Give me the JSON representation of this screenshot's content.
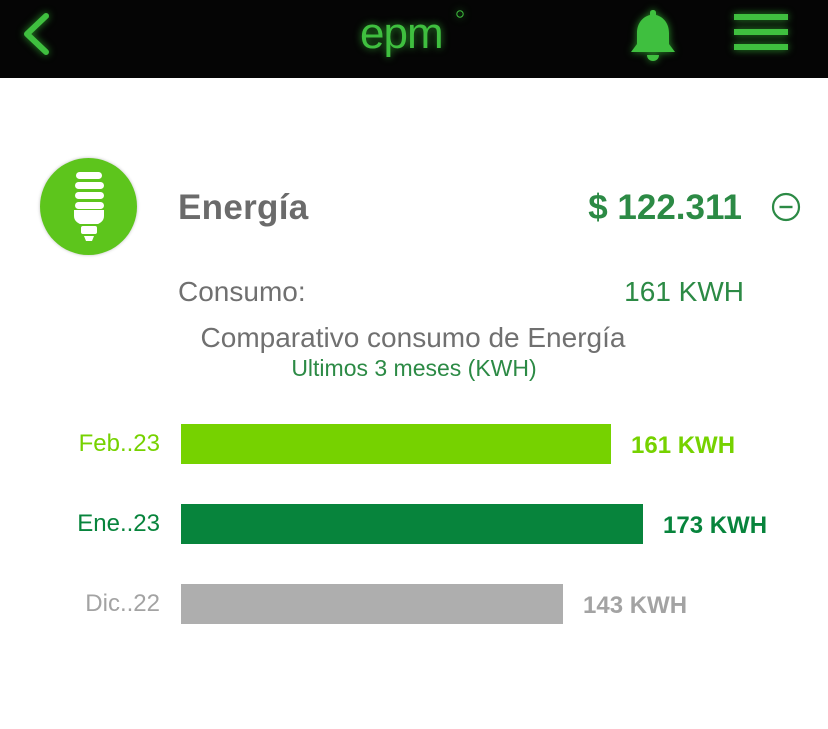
{
  "header": {
    "logo_text": "epm",
    "back_icon": "chevron-left-icon",
    "notification_icon": "bell-icon",
    "menu_icon": "hamburger-menu-icon",
    "bg_color": "#050505",
    "accent_color": "#3fbf3f"
  },
  "service": {
    "icon": "lightbulb-icon",
    "name": "Energía",
    "amount": "$ 122.311",
    "collapse_icon": "minus-circle-icon",
    "consumption_label": "Consumo:",
    "consumption_value": "161 KWH"
  },
  "chart": {
    "title": "Comparativo consumo de Energía",
    "subtitle": "Ultimos 3 meses (KWH)"
  },
  "chart_data": {
    "type": "bar",
    "orientation": "horizontal",
    "categories": [
      "Feb..23",
      "Ene..23",
      "Dic..22"
    ],
    "values": [
      161,
      173,
      143
    ],
    "value_labels": [
      "161 KWH",
      "173 KWH",
      "143 KWH"
    ],
    "colors": [
      "#76d200",
      "#07843c",
      "#aeaeae"
    ],
    "label_colors": [
      "#76d200",
      "#07843c",
      "#a3a3a3"
    ],
    "title": "Comparativo consumo de Energía",
    "subtitle": "Ultimos 3 meses (KWH)",
    "grid": false
  }
}
